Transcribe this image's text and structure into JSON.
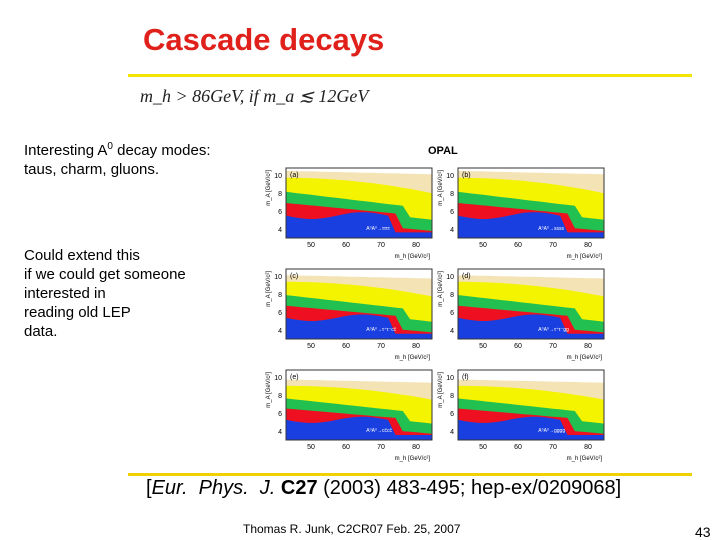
{
  "header": {
    "title": "Cascade decays",
    "condition": "m_h > 86GeV,  if m_a ≲ 12GeV"
  },
  "body": {
    "intro": {
      "before": "Interesting A",
      "superscript": "0",
      "after": " decay modes:  taus, charm, gluons."
    },
    "note_lines": [
      "Could extend this",
      "if we could get someone",
      "interested in",
      "reading old LEP",
      "data."
    ]
  },
  "figure": {
    "experiment": "OPAL",
    "xlabel": "m_h [GeV/c²]",
    "ylabel": "m_A [GeV/c²]",
    "xticks": [
      "50",
      "60",
      "70",
      "80"
    ],
    "yticks": [
      "10",
      "8",
      "6",
      "4"
    ],
    "panels": [
      {
        "label": "(a)",
        "channel": "A⁰A⁰→ττττ"
      },
      {
        "label": "(b)",
        "channel": "A⁰A⁰→ssss"
      },
      {
        "label": "(c)",
        "channel": "A⁰A⁰→τ⁺τ⁻cc̄"
      },
      {
        "label": "(d)",
        "channel": "A⁰A⁰→τ⁺τ⁻gg"
      },
      {
        "label": "(e)",
        "channel": "A⁰A⁰→cc̄cc̄"
      },
      {
        "label": "(f)",
        "channel": "A⁰A⁰→gggg"
      }
    ]
  },
  "citation": {
    "open": "[",
    "journal": "Eur.  Phys.  J.",
    "volume": "C27",
    "rest": " (2003) 483-495; hep-ex/0209068]"
  },
  "footer": {
    "author": "Thomas R. Junk, C2CR07 Feb. 25, 2007",
    "page": "43"
  }
}
